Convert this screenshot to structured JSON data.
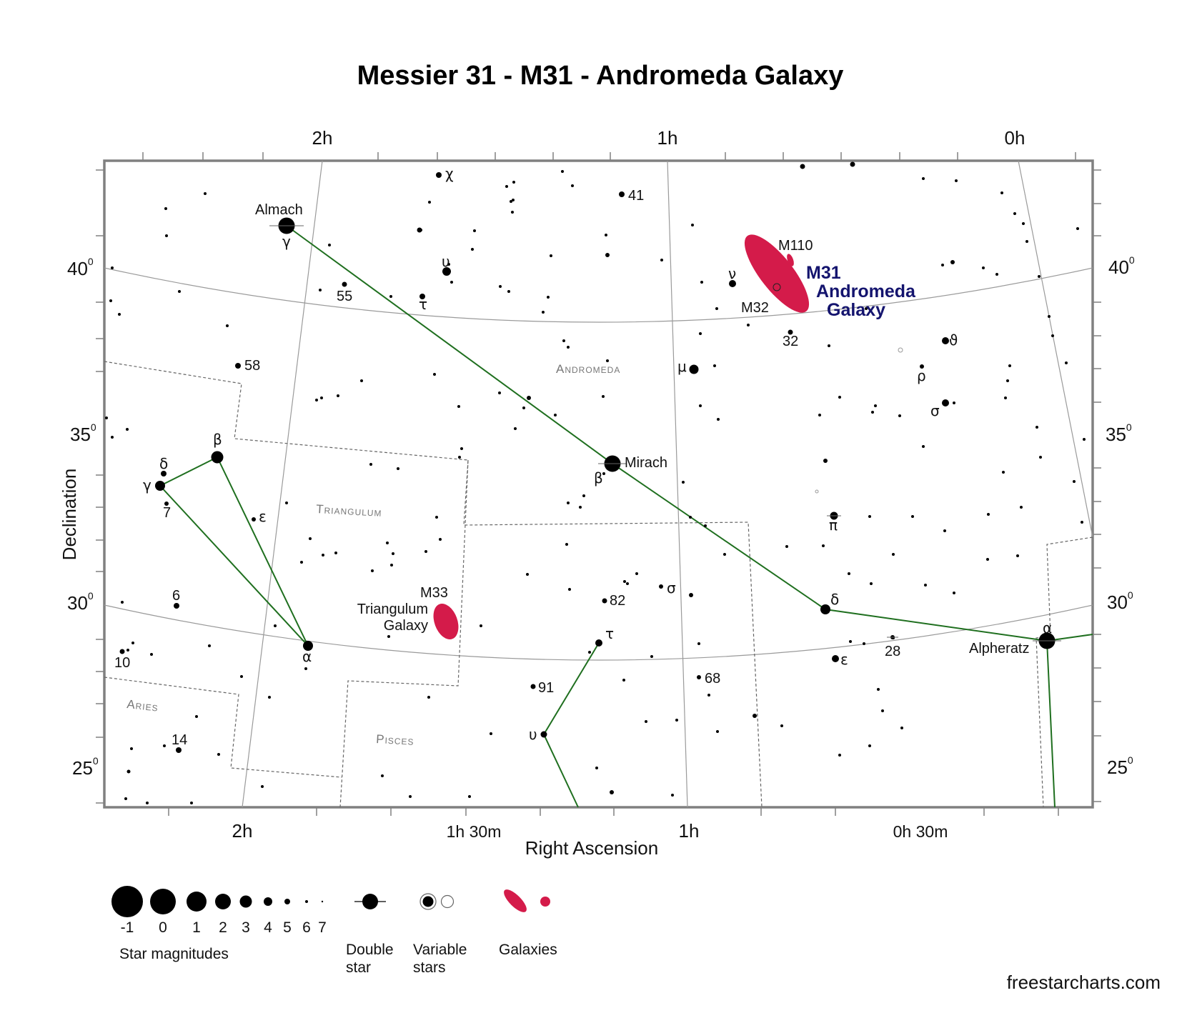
{
  "title": "Messier 31 - M31 - Andromeda Galaxy",
  "axes": {
    "x_title": "Right Ascension",
    "y_title": "Declination",
    "top_ra_labels": [
      "2h",
      "1h",
      "0h"
    ],
    "bottom_ra_labels": [
      "2h",
      "1h 30m",
      "1h",
      "0h 30m"
    ],
    "dec_labels": [
      {
        "value": "40",
        "sup": "0"
      },
      {
        "value": "35",
        "sup": "0"
      },
      {
        "value": "30",
        "sup": "0"
      },
      {
        "value": "25",
        "sup": "0"
      }
    ]
  },
  "constellations": {
    "andromeda": "Andromeda",
    "triangulum": "Triangulum",
    "aries": "Aries",
    "pisces": "Pisces"
  },
  "star_names": {
    "almach": "Almach",
    "mirach": "Mirach",
    "alpheratz": "Alpheratz"
  },
  "star_labels": {
    "chi": "χ",
    "n41": "41",
    "gamma_and": "γ",
    "upsilon_and": "υ",
    "n55": "55",
    "tau_and": "τ",
    "nu_and": "ν",
    "n32": "32",
    "theta_and": "ϑ",
    "n58": "58",
    "mu_and": "μ",
    "rho_and": "ρ",
    "sigma_and": "σ",
    "beta_tri": "β",
    "delta_tri": "δ",
    "gamma_tri": "γ",
    "n7": "7",
    "epsilon_tri": "ε",
    "beta_and": "β",
    "pi_and": "π",
    "n6": "6",
    "n82": "82",
    "sigma_psc": "σ",
    "delta_and": "δ",
    "alpha_tri": "α",
    "n10": "10",
    "tau_psc": "τ",
    "epsilon_and": "ε",
    "n28": "28",
    "alpha_and": "α",
    "n91": "91",
    "n68": "68",
    "upsilon_psc": "υ",
    "n14": "14"
  },
  "objects": {
    "m110": "M110",
    "m31_line1": "M31",
    "m31_line2": "Andromeda",
    "m31_line3": "Galaxy",
    "m32": "M32",
    "m33": "M33",
    "m33_line1": "Triangulum",
    "m33_line2": "Galaxy"
  },
  "legend": {
    "magnitudes": [
      "-1",
      "0",
      "1",
      "2",
      "3",
      "4",
      "5",
      "6",
      "7"
    ],
    "star_magnitudes_label": "Star magnitudes",
    "double_star_line1": "Double",
    "double_star_line2": "star",
    "variable_line1": "Variable",
    "variable_line2": "stars",
    "galaxies_label": "Galaxies"
  },
  "credit": "freestarcharts.com",
  "colors": {
    "galaxy": "#d41b4a",
    "constellation_line": "#1f6f1f",
    "m31_label": "#14146e",
    "frame": "#808080",
    "grid": "#9a9a9a"
  }
}
